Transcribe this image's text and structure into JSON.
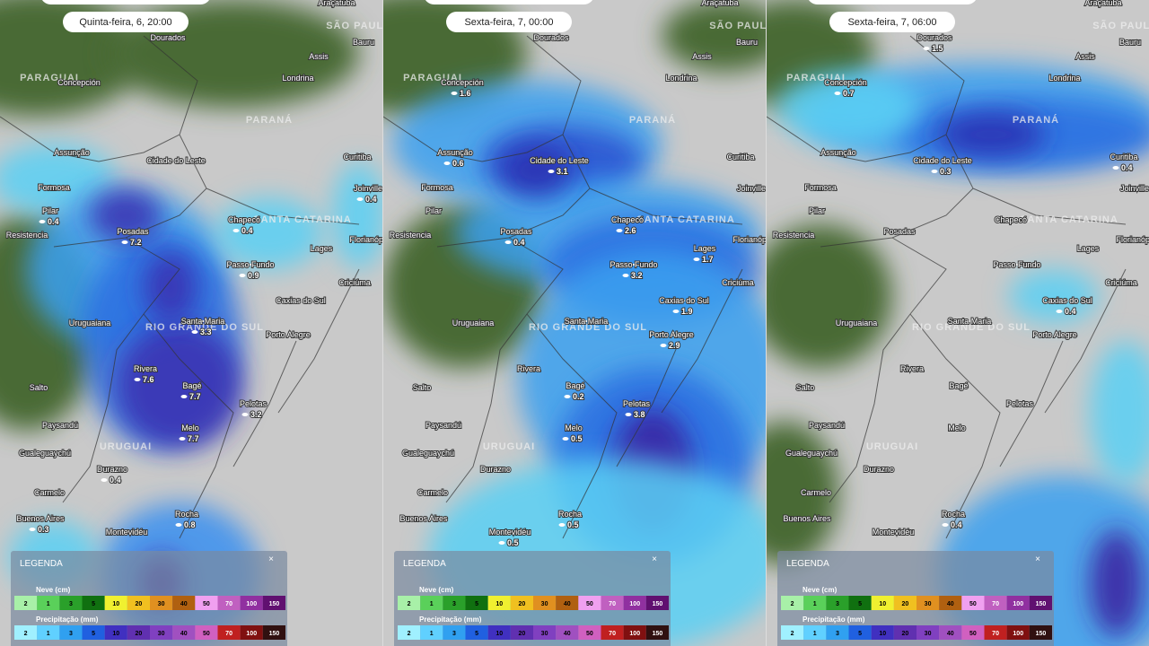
{
  "panels": [
    {
      "time": "Quinta-feira, 6, 20:00",
      "values": [
        null,
        null,
        null,
        null,
        null,
        null,
        null,
        null,
        null,
        null,
        0.4,
        0.4,
        null,
        7.2,
        0.4,
        null,
        null,
        0.9,
        null,
        null,
        null,
        3.3,
        null,
        7.6,
        7.7,
        null,
        3.2,
        null,
        7.7,
        null,
        0.4,
        null,
        0.3,
        0.8,
        null
      ]
    },
    {
      "time": "Sexta-feira, 7, 00:00",
      "values": [
        null,
        null,
        null,
        null,
        1.6,
        null,
        0.6,
        3.1,
        null,
        null,
        null,
        null,
        null,
        0.4,
        2.6,
        1.7,
        null,
        3.2,
        null,
        1.9,
        null,
        null,
        2.9,
        null,
        0.2,
        null,
        3.8,
        null,
        0.5,
        null,
        null,
        null,
        null,
        0.5,
        0.5
      ]
    },
    {
      "time": "Sexta-feira, 7, 06:00",
      "values": [
        null,
        1.5,
        null,
        null,
        0.7,
        null,
        null,
        0.3,
        0.4,
        null,
        null,
        null,
        null,
        null,
        null,
        null,
        null,
        null,
        null,
        0.4,
        null,
        null,
        null,
        null,
        null,
        null,
        null,
        null,
        null,
        null,
        null,
        null,
        null,
        0.4,
        null
      ]
    }
  ],
  "places": [
    "Araçatuba",
    "Dourados",
    "Bauru",
    "Assis",
    "Concepción",
    "Londrina",
    "Assunção",
    "Cidade do Leste",
    "Curitiba",
    "Formosa",
    "Joinville",
    "Pilar",
    "Resistencia",
    "Posadas",
    "Chapecó",
    "Lages",
    "Florianópolis",
    "Passo Fundo",
    "Criciúma",
    "Caxias do Sul",
    "Uruguaiana",
    "Santa Maria",
    "Porto Alegre",
    "Rivera",
    "Bagé",
    "Salto",
    "Pelotas",
    "Paysandú",
    "Melo",
    "Gualeguaychú",
    "Durazno",
    "Carmelo",
    "Buenos Aires",
    "Rocha",
    "Montevidéu"
  ],
  "regions": [
    "SÃO PAULO",
    "PARAGUAI",
    "PARANÁ",
    "SANTA CATARINA",
    "RIO GRANDE DO SUL",
    "URUGUAI"
  ],
  "legend": {
    "title": "LEGENDA",
    "close": "×",
    "snow_title": "Neve (cm)",
    "snow_scale": [
      "2",
      "1",
      "3",
      "5",
      "10",
      "20",
      "30",
      "40",
      "50",
      "70",
      "100",
      "150"
    ],
    "precip_title": "Precipitação (mm)",
    "precip_scale": [
      "2",
      "1",
      "3",
      "5",
      "10",
      "20",
      "30",
      "40",
      "50",
      "70",
      "100",
      "150"
    ]
  }
}
